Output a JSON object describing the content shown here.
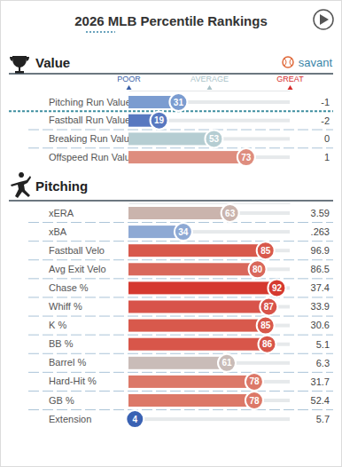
{
  "header": {
    "title": "2026 MLB Percentile Rankings",
    "brand": "savant"
  },
  "chart_data": [
    {
      "type": "bar",
      "title": "Value",
      "orientation": "horizontal",
      "data_labels": true,
      "categories": [
        "Pitching Run Value",
        "Fastball Run Value",
        "Breaking Run Value",
        "Offspeed Run Value"
      ],
      "values": [
        31,
        19,
        53,
        73
      ],
      "colors": [
        "#7b9cd0",
        "#5878c0",
        "#b5cdd2",
        "#de8d7e"
      ],
      "stats": [
        -1,
        -2,
        0,
        1
      ],
      "xlim": [
        0,
        100
      ],
      "xticks": [
        {
          "value": 0,
          "label": "POOR"
        },
        {
          "value": 50,
          "label": "AVERAGE"
        },
        {
          "value": 100,
          "label": "GREAT"
        }
      ]
    },
    {
      "type": "bar",
      "title": "Pitching",
      "orientation": "horizontal",
      "data_labels": true,
      "tick_labels": "y",
      "categories": [
        "xERA",
        "xBA",
        "Fastball Velo",
        "Avg Exit Velo",
        "Chase %",
        "Whiff %",
        "K %",
        "BB %",
        "Barrel %",
        "Hard-Hit %",
        "GB %",
        "Extension"
      ],
      "values": [
        63,
        34,
        85,
        80,
        92,
        87,
        85,
        86,
        61,
        78,
        78,
        4
      ],
      "colors": [
        "#cab4ad",
        "#8ea9d4",
        "#d8594c",
        "#d9685b",
        "#d5392f",
        "#d8534a",
        "#d8594c",
        "#d8564a",
        "#c9bcb8",
        "#dc7868",
        "#dc7868",
        "#3a62b3"
      ],
      "stats": [
        3.59,
        {
          "value": 0.263,
          "label": ".263"
        },
        96.9,
        86.5,
        37.4,
        33.9,
        30.6,
        5.1,
        6.3,
        31.7,
        52.4,
        5.7
      ],
      "xlim": [
        0,
        100
      ],
      "xticks": []
    }
  ]
}
